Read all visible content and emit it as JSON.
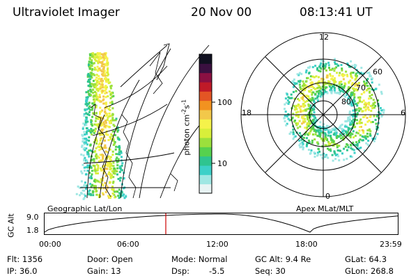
{
  "header": {
    "instrument": "Ultraviolet Imager",
    "date": "20 Nov 00",
    "time": "08:13:41 UT"
  },
  "left_panel": {
    "label": "Geographic Lat/Lon"
  },
  "right_panel": {
    "label": "Apex MLat/MLT",
    "mlt_labels": {
      "top": "12",
      "left": "18",
      "right": "6",
      "bottom": "0"
    },
    "lat_labels": [
      "60",
      "70",
      "80"
    ]
  },
  "colorbar": {
    "unit_main": "photon cm",
    "unit_exp1": "-2",
    "unit_s": "s",
    "unit_exp2": "-1",
    "ticks": [
      "100",
      "10"
    ],
    "colors": [
      "#e8f4f4",
      "#9fe7e3",
      "#3dd0c8",
      "#2fc490",
      "#56d14e",
      "#9be03c",
      "#d8ef3a",
      "#f5f24a",
      "#f2c84a",
      "#f29220",
      "#e35524",
      "#c01a28",
      "#8a1042",
      "#3a1040",
      "#101020"
    ]
  },
  "altitude_plot": {
    "ylabel": "GC Alt",
    "y_ticks": [
      "9.0",
      "1.8"
    ],
    "x_ticks": [
      "00:00",
      "06:00",
      "12:00",
      "18:00",
      "23:59"
    ],
    "current_time_frac": 0.3425,
    "marker_color": "#cc0000"
  },
  "footer": {
    "col1": [
      "Flt: 1356",
      "IP: 36.0"
    ],
    "col2": [
      "Door: Open",
      "Gain: 13"
    ],
    "col3a": [
      "Mode: Normal",
      "Dsp:"
    ],
    "dsp_value": "-5.5",
    "col4": [
      "GC Alt: 9.4 Re",
      "Seq: 30"
    ],
    "col5": [
      "GLat:  64.3",
      "GLon: 268.8"
    ]
  }
}
